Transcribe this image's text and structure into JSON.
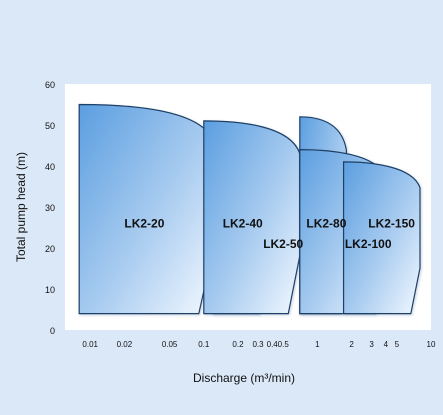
{
  "chart_data": {
    "type": "area",
    "title": "",
    "xlabel": "Discharge (m³/min)",
    "ylabel": "Total pump head (m)",
    "x_scale": "log",
    "xlim": [
      0.006,
      10
    ],
    "ylim": [
      0,
      60
    ],
    "yticks": [
      0,
      10,
      20,
      30,
      40,
      50,
      60
    ],
    "xticks": [
      {
        "value": 0.01,
        "label": "0.01"
      },
      {
        "value": 0.02,
        "label": "0.02"
      },
      {
        "value": 0.05,
        "label": "0.05"
      },
      {
        "value": 0.1,
        "label": "0.1"
      },
      {
        "value": 0.2,
        "label": "0.2"
      },
      {
        "value": 0.3,
        "label": "0.3"
      },
      {
        "value": 0.4,
        "label": "0.4"
      },
      {
        "value": 0.5,
        "label": "0.5"
      },
      {
        "value": 1,
        "label": "1"
      },
      {
        "value": 2,
        "label": "2"
      },
      {
        "value": 3,
        "label": "3"
      },
      {
        "value": 4,
        "label": "4"
      },
      {
        "value": 5,
        "label": "5"
      },
      {
        "value": 10,
        "label": "10"
      }
    ],
    "grid": false,
    "series": [
      {
        "name": "LK2-20",
        "q_min": 0.008,
        "q_max": 0.12,
        "h_max": 55,
        "label_x": 0.03,
        "label_h": 26
      },
      {
        "name": "LK2-40",
        "q_min": 0.12,
        "q_max": 0.35,
        "h_max": 40,
        "label_x": 0.22,
        "label_h": 26
      },
      {
        "name": "LK2-50",
        "q_min": 0.1,
        "q_max": 0.7,
        "h_max": 51,
        "label_x": 0.5,
        "label_h": 21
      },
      {
        "name": "LK2-80",
        "q_min": 0.7,
        "q_max": 1.8,
        "h_max": 52,
        "label_x": 1.2,
        "label_h": 26
      },
      {
        "name": "LK2-100",
        "q_min": 0.7,
        "q_max": 4.0,
        "h_max": 44,
        "label_x": 2.8,
        "label_h": 21
      },
      {
        "name": "LK2-150",
        "q_min": 1.7,
        "q_max": 8.0,
        "h_max": 41,
        "label_x": 4.5,
        "label_h": 26
      }
    ]
  }
}
